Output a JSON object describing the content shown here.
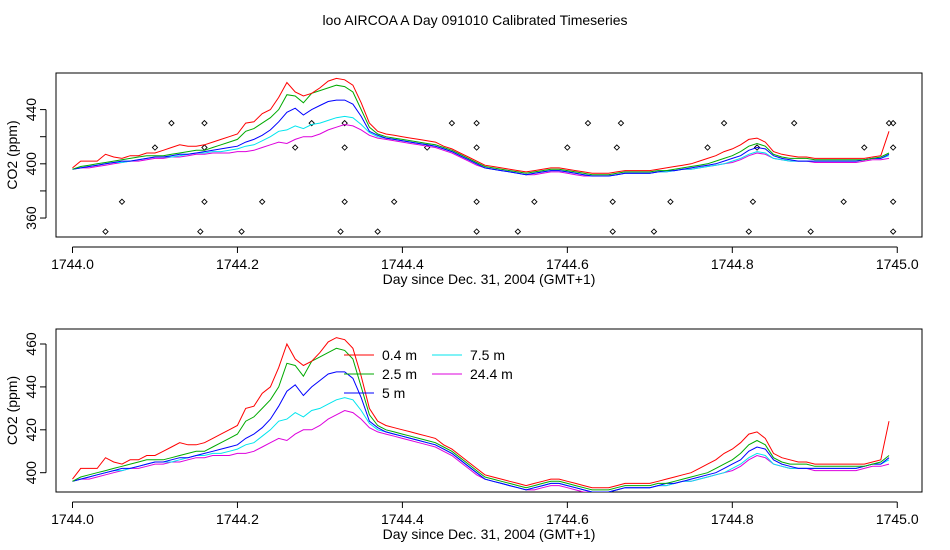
{
  "title": "loo AIRCOA A  Day 091010  Calibrated Timeseries",
  "colors": {
    "0.4 m": "#ff0000",
    "2.5 m": "#00aa00",
    "5 m": "#0000ff",
    "7.5 m": "#00e5ee",
    "24.4 m": "#dd00dd",
    "markers": "#000000",
    "frame": "#000000"
  },
  "chart_data": [
    {
      "type": "line",
      "panel": "top",
      "xlabel": "Day since Dec. 31, 2004 (GMT+1)",
      "ylabel": "CO2 (ppm)",
      "xlim": [
        1743.98,
        1745.03
      ],
      "ylim": [
        346,
        467
      ],
      "x_ticks": [
        1744.0,
        1744.2,
        1744.4,
        1744.6,
        1744.8,
        1745.0
      ],
      "x_tick_labels": [
        "1744.0",
        "1744.2",
        "1744.4",
        "1744.6",
        "1744.8",
        "1745.0"
      ],
      "y_ticks": [
        360,
        380,
        400,
        420,
        440
      ],
      "y_tick_labels": [
        "360",
        "",
        "400",
        "",
        "440"
      ],
      "grid": false,
      "legend": null,
      "x": [
        1744.0,
        1744.01,
        1744.02,
        1744.03,
        1744.04,
        1744.05,
        1744.06,
        1744.07,
        1744.08,
        1744.09,
        1744.1,
        1744.11,
        1744.12,
        1744.13,
        1744.14,
        1744.15,
        1744.16,
        1744.17,
        1744.18,
        1744.19,
        1744.2,
        1744.21,
        1744.22,
        1744.23,
        1744.24,
        1744.25,
        1744.26,
        1744.27,
        1744.28,
        1744.29,
        1744.3,
        1744.31,
        1744.32,
        1744.33,
        1744.34,
        1744.35,
        1744.36,
        1744.37,
        1744.38,
        1744.39,
        1744.4,
        1744.41,
        1744.42,
        1744.43,
        1744.44,
        1744.45,
        1744.46,
        1744.47,
        1744.48,
        1744.49,
        1744.5,
        1744.51,
        1744.52,
        1744.53,
        1744.54,
        1744.55,
        1744.56,
        1744.57,
        1744.58,
        1744.59,
        1744.6,
        1744.61,
        1744.62,
        1744.63,
        1744.64,
        1744.65,
        1744.66,
        1744.67,
        1744.68,
        1744.69,
        1744.7,
        1744.71,
        1744.72,
        1744.73,
        1744.74,
        1744.75,
        1744.76,
        1744.77,
        1744.78,
        1744.79,
        1744.8,
        1744.81,
        1744.82,
        1744.83,
        1744.84,
        1744.85,
        1744.86,
        1744.87,
        1744.88,
        1744.89,
        1744.9,
        1744.91,
        1744.92,
        1744.93,
        1744.94,
        1744.95,
        1744.96,
        1744.97,
        1744.98,
        1744.99
      ],
      "series": [
        {
          "name": "24.4 m",
          "values": [
            396,
            397,
            397,
            398,
            399,
            400,
            401,
            402,
            402,
            403,
            404,
            404,
            405,
            405,
            406,
            407,
            407,
            408,
            408,
            408,
            409,
            409,
            410,
            412,
            414,
            416,
            415,
            418,
            420,
            420,
            422,
            425,
            427,
            429,
            428,
            425,
            421,
            419,
            418,
            417,
            416,
            415,
            414,
            413,
            412,
            410,
            408,
            405,
            402,
            399,
            397,
            396,
            395,
            394,
            393,
            392,
            392,
            393,
            394,
            394,
            393,
            392,
            391,
            391,
            391,
            391,
            392,
            393,
            393,
            393,
            393,
            394,
            394,
            395,
            396,
            396,
            397,
            398,
            399,
            400,
            401,
            403,
            406,
            408,
            407,
            404,
            403,
            402,
            402,
            402,
            401,
            401,
            401,
            401,
            401,
            401,
            402,
            403,
            403,
            404
          ]
        },
        {
          "name": "7.5 m",
          "values": [
            396,
            397,
            398,
            399,
            400,
            401,
            401,
            402,
            403,
            404,
            405,
            405,
            405,
            406,
            407,
            408,
            408,
            409,
            409,
            410,
            411,
            413,
            414,
            417,
            420,
            424,
            425,
            428,
            426,
            429,
            430,
            432,
            434,
            435,
            434,
            429,
            423,
            420,
            419,
            418,
            417,
            416,
            415,
            414,
            413,
            411,
            409,
            406,
            403,
            400,
            397,
            396,
            395,
            394,
            393,
            392,
            393,
            394,
            395,
            395,
            394,
            393,
            392,
            391,
            391,
            391,
            392,
            393,
            393,
            393,
            393,
            394,
            394,
            395,
            396,
            396,
            397,
            398,
            399,
            400,
            402,
            404,
            407,
            409,
            408,
            404,
            403,
            402,
            402,
            402,
            402,
            402,
            402,
            402,
            402,
            402,
            403,
            404,
            404,
            406
          ]
        },
        {
          "name": "5 m",
          "values": [
            396,
            397,
            398,
            399,
            400,
            401,
            402,
            402,
            403,
            404,
            405,
            405,
            406,
            407,
            407,
            408,
            409,
            410,
            411,
            412,
            413,
            416,
            418,
            421,
            425,
            431,
            438,
            441,
            436,
            440,
            443,
            446,
            447,
            447,
            444,
            435,
            424,
            421,
            419,
            418,
            417,
            416,
            415,
            414,
            413,
            411,
            409,
            406,
            403,
            400,
            397,
            396,
            395,
            394,
            393,
            392,
            393,
            394,
            395,
            395,
            394,
            393,
            392,
            391,
            391,
            391,
            392,
            393,
            393,
            393,
            393,
            394,
            395,
            395,
            396,
            397,
            398,
            399,
            400,
            402,
            404,
            406,
            410,
            412,
            411,
            406,
            404,
            403,
            402,
            402,
            402,
            402,
            402,
            402,
            402,
            402,
            403,
            404,
            404,
            407
          ]
        },
        {
          "name": "2.5 m",
          "values": [
            396,
            398,
            399,
            400,
            401,
            402,
            403,
            404,
            405,
            406,
            406,
            406,
            407,
            408,
            409,
            410,
            410,
            412,
            414,
            416,
            418,
            424,
            426,
            430,
            434,
            440,
            451,
            450,
            445,
            452,
            454,
            456,
            458,
            457,
            453,
            440,
            427,
            422,
            420,
            419,
            418,
            417,
            416,
            415,
            414,
            412,
            410,
            407,
            404,
            401,
            398,
            397,
            396,
            395,
            394,
            393,
            394,
            395,
            396,
            396,
            395,
            394,
            393,
            392,
            392,
            392,
            393,
            394,
            394,
            394,
            394,
            395,
            395,
            396,
            397,
            398,
            399,
            400,
            402,
            404,
            406,
            409,
            413,
            415,
            413,
            407,
            405,
            404,
            404,
            404,
            403,
            403,
            403,
            403,
            403,
            403,
            403,
            404,
            405,
            408
          ]
        },
        {
          "name": "0.4 m",
          "values": [
            397,
            402,
            402,
            402,
            407,
            405,
            404,
            406,
            406,
            408,
            408,
            410,
            412,
            414,
            413,
            413,
            414,
            416,
            418,
            420,
            422,
            430,
            431,
            437,
            440,
            449,
            460,
            453,
            450,
            452,
            456,
            461,
            463,
            462,
            458,
            445,
            430,
            424,
            422,
            421,
            420,
            419,
            418,
            417,
            416,
            413,
            411,
            408,
            405,
            402,
            399,
            398,
            397,
            396,
            395,
            394,
            395,
            396,
            397,
            397,
            396,
            395,
            394,
            393,
            393,
            393,
            394,
            395,
            395,
            395,
            395,
            396,
            397,
            398,
            399,
            400,
            402,
            404,
            406,
            409,
            411,
            414,
            418,
            419,
            416,
            409,
            407,
            406,
            405,
            405,
            404,
            404,
            404,
            404,
            404,
            404,
            404,
            405,
            406,
            424
          ]
        }
      ],
      "markers": {
        "x": [
          1744.04,
          1744.06,
          1744.1,
          1744.12,
          1744.155,
          1744.16,
          1744.16,
          1744.16,
          1744.205,
          1744.23,
          1744.27,
          1744.29,
          1744.325,
          1744.33,
          1744.33,
          1744.33,
          1744.37,
          1744.39,
          1744.43,
          1744.46,
          1744.49,
          1744.49,
          1744.49,
          1744.49,
          1744.54,
          1744.56,
          1744.6,
          1744.625,
          1744.655,
          1744.655,
          1744.66,
          1744.665,
          1744.705,
          1744.725,
          1744.77,
          1744.79,
          1744.82,
          1744.825,
          1744.83,
          1744.875,
          1744.895,
          1744.935,
          1744.96,
          1744.99,
          1744.995,
          1744.995,
          1744.995,
          1744.995
        ],
        "values": [
          350,
          372,
          412,
          430,
          350,
          372,
          412,
          430,
          350,
          372,
          412,
          430,
          350,
          372,
          412,
          430,
          350,
          372,
          412,
          430,
          350,
          372,
          412,
          430,
          350,
          372,
          412,
          430,
          350,
          372,
          412,
          430,
          350,
          372,
          412,
          430,
          350,
          372,
          412,
          430,
          350,
          372,
          412,
          430,
          350,
          372,
          412,
          430
        ]
      }
    },
    {
      "type": "line",
      "panel": "bottom",
      "xlabel": "Day since Dec. 31, 2004 (GMT+1)",
      "ylabel": "CO2 (ppm)",
      "xlim": [
        1743.98,
        1745.03
      ],
      "ylim": [
        391,
        467
      ],
      "x_ticks": [
        1744.0,
        1744.2,
        1744.4,
        1744.6,
        1744.8,
        1745.0
      ],
      "x_tick_labels": [
        "1744.0",
        "1744.2",
        "1744.4",
        "1744.6",
        "1744.8",
        "1745.0"
      ],
      "y_ticks": [
        400,
        420,
        440,
        460
      ],
      "y_tick_labels": [
        "400",
        "420",
        "440",
        "460"
      ],
      "grid": false,
      "legend": "top-center",
      "legend_entries": [
        "0.4 m",
        "2.5 m",
        "5 m",
        "7.5 m",
        "24.4 m"
      ],
      "same_series_as": "top"
    }
  ]
}
